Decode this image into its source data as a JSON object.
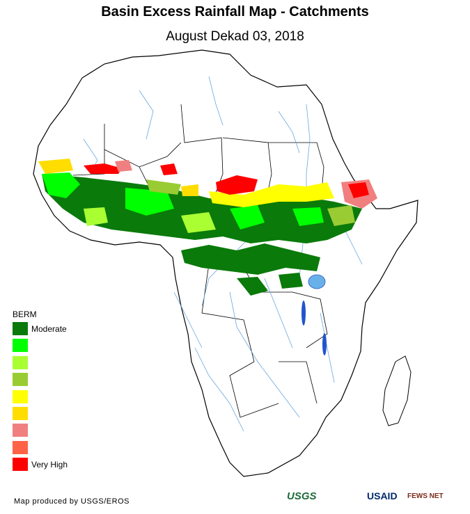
{
  "title": "Basin Excess Rainfall Map - Catchments",
  "subtitle": "August Dekad 03, 2018",
  "legend": {
    "title": "BERM",
    "classes": [
      {
        "color": "#0a7a0a",
        "label": "Moderate"
      },
      {
        "color": "#00ff00",
        "label": ""
      },
      {
        "color": "#aaff33",
        "label": ""
      },
      {
        "color": "#99cc33",
        "label": ""
      },
      {
        "color": "#ffff00",
        "label": ""
      },
      {
        "color": "#ffdd00",
        "label": ""
      },
      {
        "color": "#f08080",
        "label": ""
      },
      {
        "color": "#ff6347",
        "label": ""
      },
      {
        "color": "#ff0000",
        "label": "Very High"
      }
    ]
  },
  "credit": "Map produced by USGS/EROS",
  "logos": {
    "usgs": "USGS",
    "usaid": "USAID",
    "fews": "FEWS NET"
  },
  "colors": {
    "river": "#6aa6e0",
    "lake": "#2255cc",
    "land": "#ffffff",
    "border": "#000000"
  }
}
